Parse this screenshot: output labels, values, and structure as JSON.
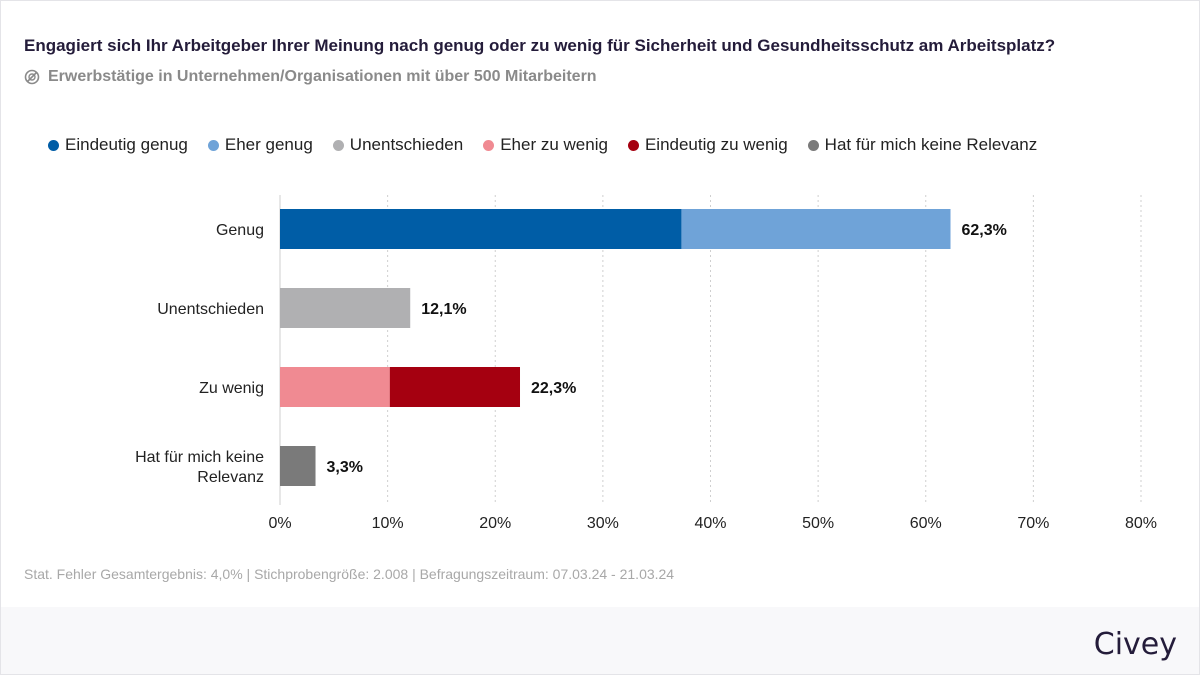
{
  "title": "Engagiert sich Ihr Arbeitgeber Ihrer Meinung nach genug oder zu wenig für Sicherheit und Gesundheitsschutz am Arbeitsplatz?",
  "subtitle": "Erwerbstätige in Unternehmen/Organisationen mit über 500 Mitarbeitern",
  "subtitle_icon": "filter-icon",
  "footnote": "Stat. Fehler Gesamtergebnis: 4,0% | Stichprobengröße: 2.008 | Befragungszeitraum: 07.03.24 - 21.03.24",
  "brand": "Civey",
  "chart_data": {
    "type": "bar",
    "orientation": "horizontal",
    "stacked": true,
    "legend_position": "top",
    "grid": true,
    "xlim": [
      0,
      80
    ],
    "x_ticks": [
      "0%",
      "10%",
      "20%",
      "30%",
      "40%",
      "50%",
      "60%",
      "70%",
      "80%"
    ],
    "categories": [
      "Genug",
      "Unentschieden",
      "Zu wenig",
      "Hat für mich keine Relevanz"
    ],
    "totals": [
      "62,3%",
      "12,1%",
      "22,3%",
      "3,3%"
    ],
    "series": [
      {
        "name": "Eindeutig genug",
        "color": "#005da6",
        "values": [
          37.3,
          0,
          0,
          0
        ]
      },
      {
        "name": "Eher genug",
        "color": "#6fa3d8",
        "values": [
          25.0,
          0,
          0,
          0
        ]
      },
      {
        "name": "Unentschieden",
        "color": "#b0b0b2",
        "values": [
          0,
          12.1,
          0,
          0
        ]
      },
      {
        "name": "Eher zu wenig",
        "color": "#f08a92",
        "values": [
          0,
          0,
          10.2,
          0
        ]
      },
      {
        "name": "Eindeutig zu wenig",
        "color": "#a50010",
        "values": [
          0,
          0,
          12.1,
          0
        ]
      },
      {
        "name": "Hat für mich keine Relevanz",
        "color": "#7a7a7a",
        "values": [
          0,
          0,
          0,
          3.3
        ]
      }
    ]
  }
}
